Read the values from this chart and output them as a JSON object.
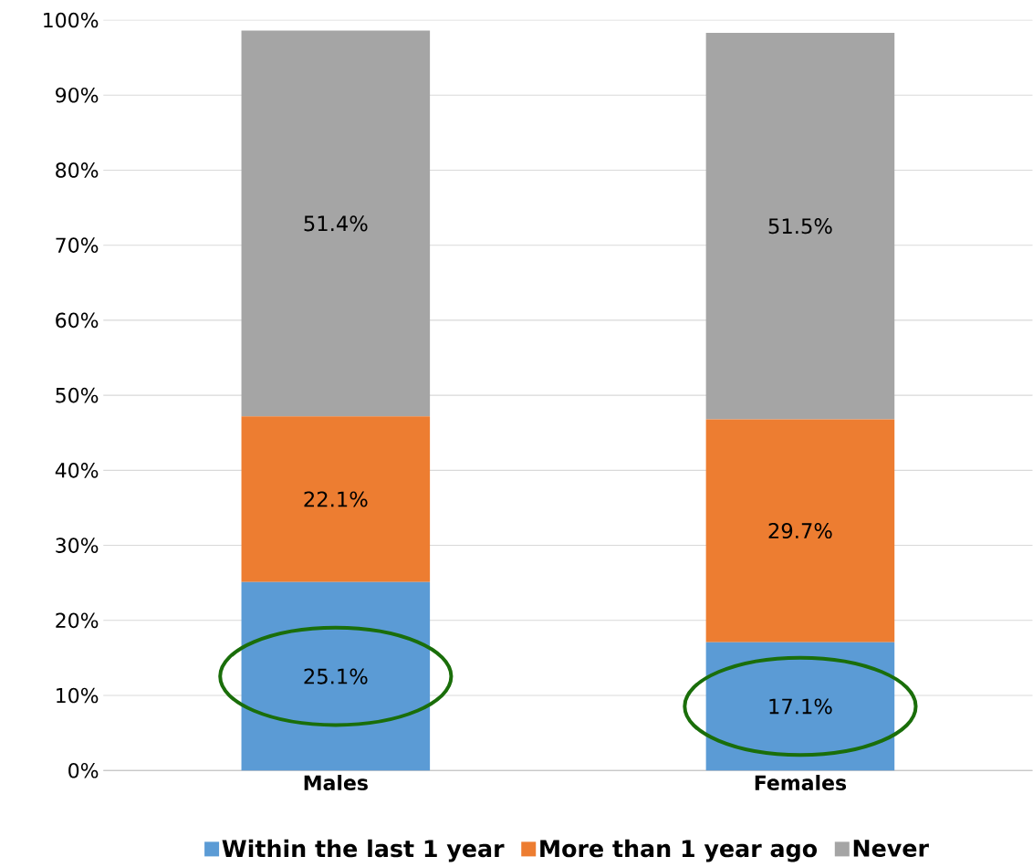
{
  "chart_data": {
    "type": "bar",
    "stacked": true,
    "categories": [
      "Males",
      "Females"
    ],
    "series": [
      {
        "name": "Within the last 1 year",
        "color": "#5b9bd5",
        "values": [
          25.1,
          17.1
        ],
        "value_labels": [
          "25.1%",
          "17.1%"
        ]
      },
      {
        "name": "More than 1 year ago",
        "color": "#ed7d31",
        "values": [
          22.1,
          29.7
        ],
        "value_labels": [
          "22.1%",
          "29.7%"
        ]
      },
      {
        "name": "Never",
        "color": "#a5a5a5",
        "values": [
          51.4,
          51.5
        ],
        "value_labels": [
          "51.4%",
          "51.5%"
        ]
      }
    ],
    "ylim": [
      0,
      100
    ],
    "yticks": [
      {
        "value": 0,
        "label": "0%"
      },
      {
        "value": 10,
        "label": "10%"
      },
      {
        "value": 20,
        "label": "20%"
      },
      {
        "value": 30,
        "label": "30%"
      },
      {
        "value": 40,
        "label": "40%"
      },
      {
        "value": 50,
        "label": "50%"
      },
      {
        "value": 60,
        "label": "60%"
      },
      {
        "value": 70,
        "label": "70%"
      },
      {
        "value": 80,
        "label": "80%"
      },
      {
        "value": 90,
        "label": "90%"
      },
      {
        "value": 100,
        "label": "100%"
      }
    ],
    "grid": "y",
    "legend": "bottom"
  }
}
